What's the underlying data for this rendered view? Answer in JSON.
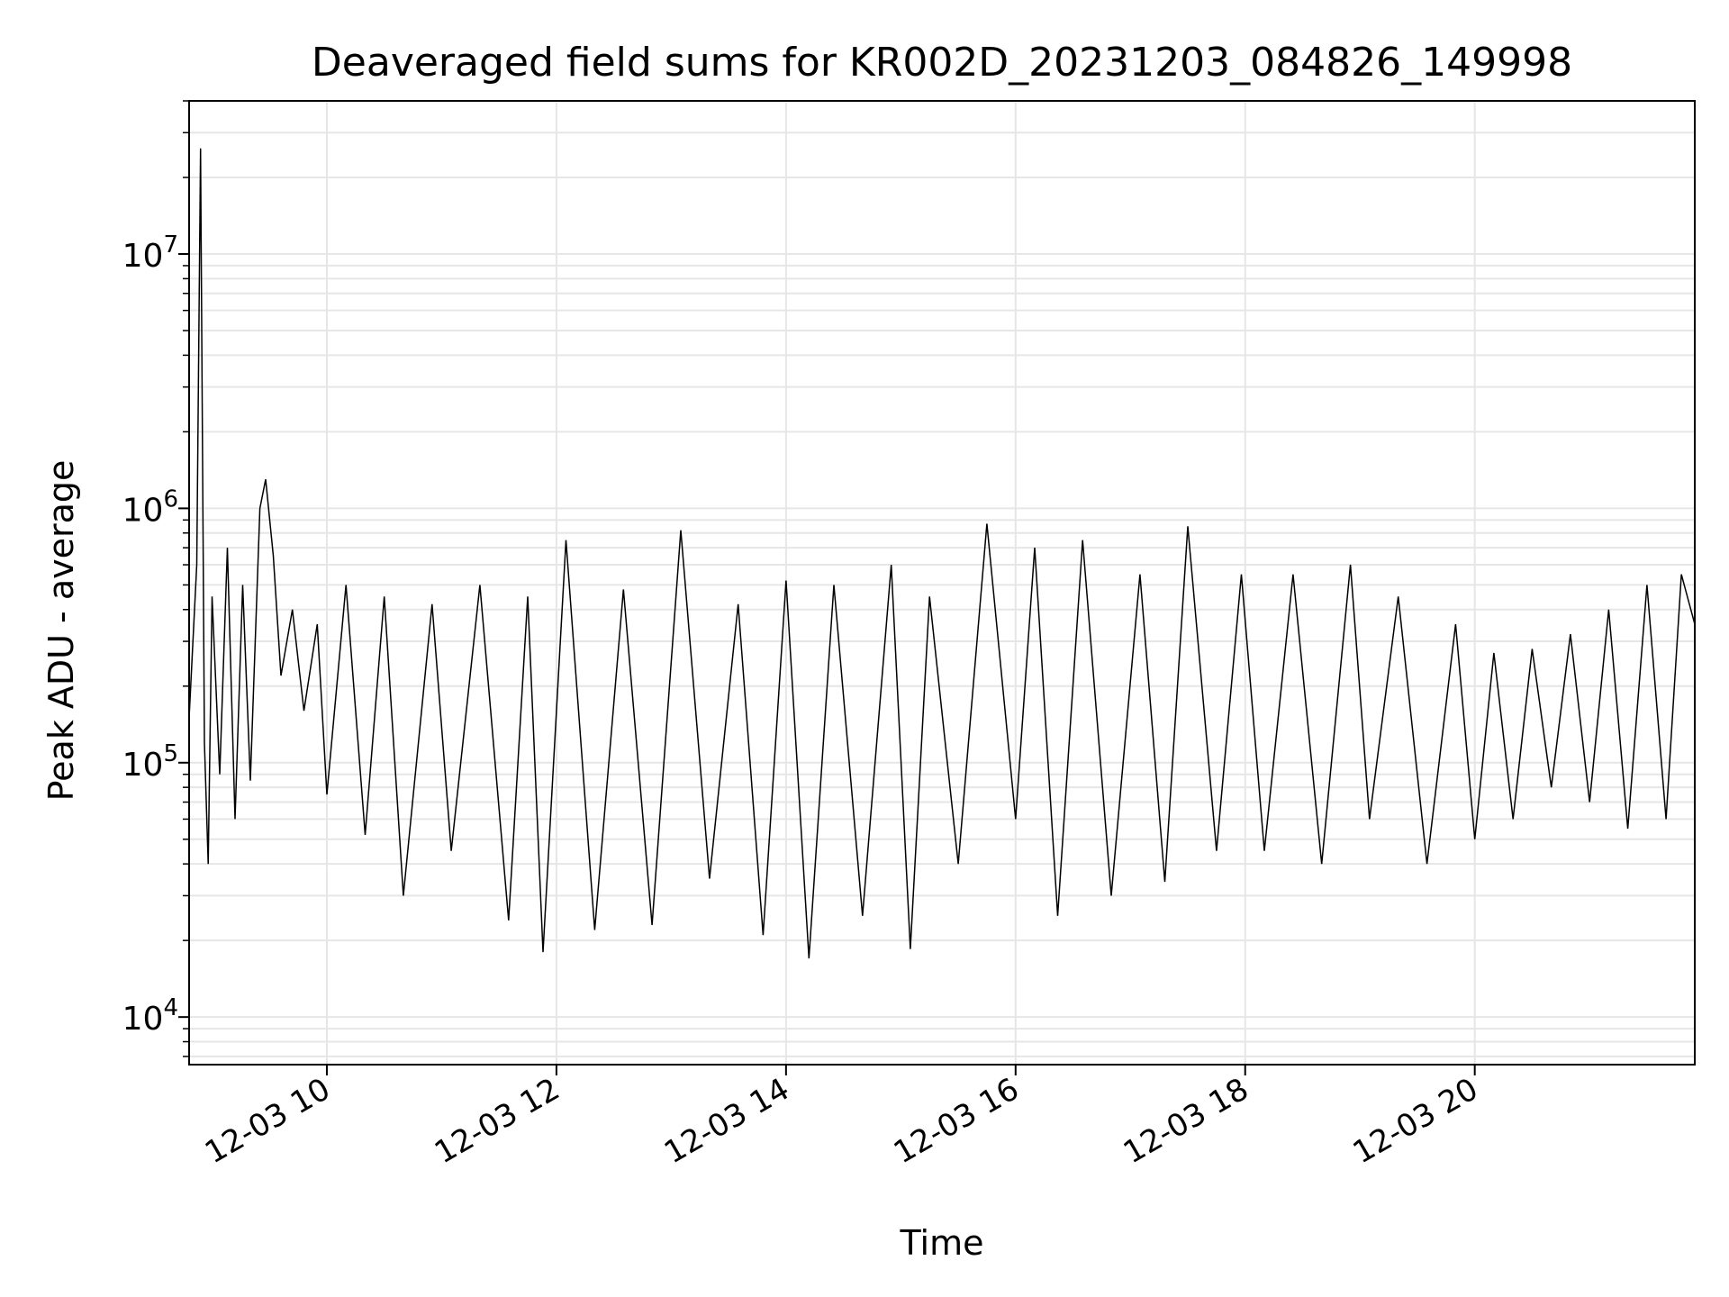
{
  "chart_data": {
    "type": "line",
    "title": "Deaveraged field sums for KR002D_20231203_084826_149998",
    "xlabel": "Time",
    "ylabel": "Peak ADU - average",
    "yscale": "log",
    "ylim": [
      6500,
      40000000
    ],
    "xlim": [
      "2023-12-03 08:48",
      "2023-12-03 21:55"
    ],
    "grid": true,
    "x_ticks": [
      {
        "time": "2023-12-03 10:00",
        "label": "12-03 10"
      },
      {
        "time": "2023-12-03 12:00",
        "label": "12-03 12"
      },
      {
        "time": "2023-12-03 14:00",
        "label": "12-03 14"
      },
      {
        "time": "2023-12-03 16:00",
        "label": "12-03 16"
      },
      {
        "time": "2023-12-03 18:00",
        "label": "12-03 18"
      },
      {
        "time": "2023-12-03 20:00",
        "label": "12-03 20"
      }
    ],
    "y_ticks": [
      {
        "value": 10000,
        "base": "10",
        "exp": "4"
      },
      {
        "value": 100000,
        "base": "10",
        "exp": "5"
      },
      {
        "value": 1000000,
        "base": "10",
        "exp": "6"
      },
      {
        "value": 10000000,
        "base": "10",
        "exp": "7"
      }
    ],
    "series": [
      {
        "color": "#000000",
        "points": [
          [
            "2023-12-03 08:48",
            150000
          ],
          [
            "2023-12-03 08:52",
            600000
          ],
          [
            "2023-12-03 08:54",
            26000000
          ],
          [
            "2023-12-03 08:56",
            120000
          ],
          [
            "2023-12-03 08:58",
            40000
          ],
          [
            "2023-12-03 09:00",
            450000
          ],
          [
            "2023-12-03 09:04",
            90000
          ],
          [
            "2023-12-03 09:08",
            700000
          ],
          [
            "2023-12-03 09:12",
            60000
          ],
          [
            "2023-12-03 09:16",
            500000
          ],
          [
            "2023-12-03 09:20",
            85000
          ],
          [
            "2023-12-03 09:25",
            1000000
          ],
          [
            "2023-12-03 09:28",
            1300000
          ],
          [
            "2023-12-03 09:32",
            650000
          ],
          [
            "2023-12-03 09:36",
            220000
          ],
          [
            "2023-12-03 09:42",
            400000
          ],
          [
            "2023-12-03 09:48",
            160000
          ],
          [
            "2023-12-03 09:55",
            350000
          ],
          [
            "2023-12-03 10:00",
            75000
          ],
          [
            "2023-12-03 10:10",
            500000
          ],
          [
            "2023-12-03 10:20",
            52000
          ],
          [
            "2023-12-03 10:30",
            450000
          ],
          [
            "2023-12-03 10:40",
            30000
          ],
          [
            "2023-12-03 10:55",
            420000
          ],
          [
            "2023-12-03 11:05",
            45000
          ],
          [
            "2023-12-03 11:20",
            500000
          ],
          [
            "2023-12-03 11:35",
            24000
          ],
          [
            "2023-12-03 11:45",
            450000
          ],
          [
            "2023-12-03 11:53",
            18000
          ],
          [
            "2023-12-03 12:05",
            750000
          ],
          [
            "2023-12-03 12:20",
            22000
          ],
          [
            "2023-12-03 12:35",
            480000
          ],
          [
            "2023-12-03 12:50",
            23000
          ],
          [
            "2023-12-03 13:05",
            820000
          ],
          [
            "2023-12-03 13:20",
            35000
          ],
          [
            "2023-12-03 13:35",
            420000
          ],
          [
            "2023-12-03 13:48",
            21000
          ],
          [
            "2023-12-03 14:00",
            520000
          ],
          [
            "2023-12-03 14:12",
            17000
          ],
          [
            "2023-12-03 14:25",
            500000
          ],
          [
            "2023-12-03 14:40",
            25000
          ],
          [
            "2023-12-03 14:55",
            600000
          ],
          [
            "2023-12-03 15:05",
            18500
          ],
          [
            "2023-12-03 15:15",
            450000
          ],
          [
            "2023-12-03 15:30",
            40000
          ],
          [
            "2023-12-03 15:45",
            870000
          ],
          [
            "2023-12-03 16:00",
            60000
          ],
          [
            "2023-12-03 16:10",
            700000
          ],
          [
            "2023-12-03 16:22",
            25000
          ],
          [
            "2023-12-03 16:35",
            750000
          ],
          [
            "2023-12-03 16:50",
            30000
          ],
          [
            "2023-12-03 17:05",
            550000
          ],
          [
            "2023-12-03 17:18",
            34000
          ],
          [
            "2023-12-03 17:30",
            850000
          ],
          [
            "2023-12-03 17:45",
            45000
          ],
          [
            "2023-12-03 17:58",
            550000
          ],
          [
            "2023-12-03 18:10",
            45000
          ],
          [
            "2023-12-03 18:25",
            550000
          ],
          [
            "2023-12-03 18:40",
            40000
          ],
          [
            "2023-12-03 18:55",
            600000
          ],
          [
            "2023-12-03 19:05",
            60000
          ],
          [
            "2023-12-03 19:20",
            450000
          ],
          [
            "2023-12-03 19:35",
            40000
          ],
          [
            "2023-12-03 19:50",
            350000
          ],
          [
            "2023-12-03 20:00",
            50000
          ],
          [
            "2023-12-03 20:10",
            270000
          ],
          [
            "2023-12-03 20:20",
            60000
          ],
          [
            "2023-12-03 20:30",
            280000
          ],
          [
            "2023-12-03 20:40",
            80000
          ],
          [
            "2023-12-03 20:50",
            320000
          ],
          [
            "2023-12-03 21:00",
            70000
          ],
          [
            "2023-12-03 21:10",
            400000
          ],
          [
            "2023-12-03 21:20",
            55000
          ],
          [
            "2023-12-03 21:30",
            500000
          ],
          [
            "2023-12-03 21:40",
            60000
          ],
          [
            "2023-12-03 21:48",
            550000
          ],
          [
            "2023-12-03 21:55",
            350000
          ]
        ]
      }
    ]
  }
}
